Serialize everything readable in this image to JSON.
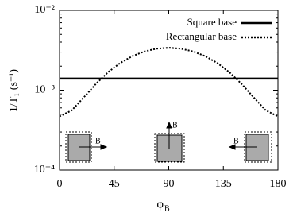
{
  "chart_data": {
    "type": "line",
    "x_label": "φ",
    "x_label_sub": "B",
    "y_label": "1/T₁ (s⁻¹)",
    "x": [
      0,
      10,
      20,
      30,
      40,
      50,
      60,
      70,
      80,
      90,
      100,
      110,
      120,
      130,
      140,
      150,
      160,
      170,
      180
    ],
    "series": [
      {
        "name": "Square base",
        "color": "#000000",
        "dash": "solid",
        "values": [
          0.0014,
          0.0014,
          0.0014,
          0.0014,
          0.0014,
          0.0014,
          0.0014,
          0.0014,
          0.0014,
          0.0014,
          0.0014,
          0.0014,
          0.0014,
          0.0014,
          0.0014,
          0.0014,
          0.0014,
          0.0014,
          0.0014
        ]
      },
      {
        "name": "Rectangular base",
        "color": "#000000",
        "dash": "dotted",
        "values": [
          0.00047,
          0.000558,
          0.000813,
          0.0012,
          0.00168,
          0.00219,
          0.00267,
          0.00306,
          0.00331,
          0.0034,
          0.00331,
          0.00306,
          0.00267,
          0.00219,
          0.00168,
          0.0012,
          0.000813,
          0.000558,
          0.00047
        ]
      }
    ],
    "xlim": [
      0,
      180
    ],
    "xticks": [
      0,
      45,
      90,
      135,
      180
    ],
    "ylim": [
      0.0001,
      0.01
    ],
    "log_y": true,
    "yticks": [
      {
        "value": 0.0001,
        "label": "10⁻⁴"
      },
      {
        "value": 0.001,
        "label": "10⁻³"
      },
      {
        "value": 0.01,
        "label": "10⁻²"
      }
    ],
    "legend": "upper-right",
    "annotations": [
      "B",
      "B",
      "B"
    ]
  }
}
